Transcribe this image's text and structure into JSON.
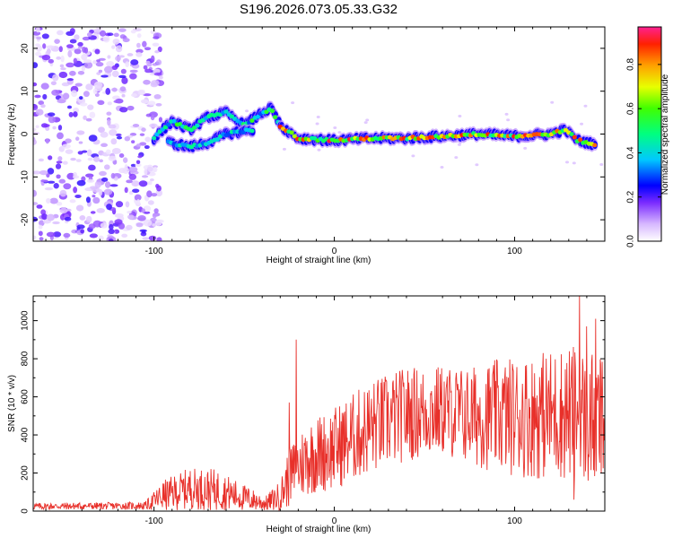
{
  "title": "S196.2026.073.05.33.G32",
  "chart_data": [
    {
      "type": "heatmap",
      "xlabel": "Height of straight line (km)",
      "ylabel": "Frequency (Hz)",
      "xlim": [
        -167,
        150
      ],
      "ylim": [
        -25,
        25
      ],
      "xticks": [
        -100,
        0,
        100
      ],
      "yticks": [
        -20,
        -10,
        0,
        10,
        20
      ],
      "colorbar": {
        "label": "Normalized spectral amplitude",
        "range": [
          0,
          0.97
        ],
        "ticks": [
          "0.0",
          "0.2",
          "0.4",
          "0.6",
          "0.8"
        ],
        "tick_values": [
          0.0,
          0.2,
          0.4,
          0.6,
          0.8
        ]
      },
      "ridge": [
        {
          "x": -100,
          "y": -1
        },
        {
          "x": -90,
          "y": 3
        },
        {
          "x": -80,
          "y": 1
        },
        {
          "x": -70,
          "y": 4
        },
        {
          "x": -60,
          "y": 5
        },
        {
          "x": -50,
          "y": 2
        },
        {
          "x": -40,
          "y": 5
        },
        {
          "x": -35,
          "y": 6
        },
        {
          "x": -30,
          "y": 2
        },
        {
          "x": -20,
          "y": -1
        },
        {
          "x": 0,
          "y": -1.5
        },
        {
          "x": 20,
          "y": -1
        },
        {
          "x": 40,
          "y": -1
        },
        {
          "x": 60,
          "y": -0.5
        },
        {
          "x": 80,
          "y": 0
        },
        {
          "x": 100,
          "y": -0.5
        },
        {
          "x": 120,
          "y": 0
        },
        {
          "x": 128,
          "y": 1
        },
        {
          "x": 135,
          "y": -1.5
        },
        {
          "x": 145,
          "y": -2.5
        }
      ],
      "secondary_ridge": [
        {
          "x": -92,
          "y": -2
        },
        {
          "x": -80,
          "y": -3
        },
        {
          "x": -70,
          "y": -2
        },
        {
          "x": -60,
          "y": 0
        },
        {
          "x": -45,
          "y": 1
        }
      ],
      "noise_region_x": [
        -167,
        -100
      ],
      "noise_region_y": [
        -25,
        25
      ]
    },
    {
      "type": "line",
      "xlabel": "Height of straight line (km)",
      "ylabel": "SNR (10 * v/v)",
      "xlim": [
        -167,
        150
      ],
      "ylim": [
        0,
        1130
      ],
      "xticks": [
        -100,
        0,
        100
      ],
      "yticks": [
        0,
        200,
        400,
        600,
        800,
        1000
      ],
      "color": "#e8302a",
      "series": [
        {
          "name": "SNR",
          "envelope": [
            {
              "x": -167,
              "base": 25,
              "amp": 18
            },
            {
              "x": -105,
              "base": 28,
              "amp": 20
            },
            {
              "x": -95,
              "base": 80,
              "amp": 80
            },
            {
              "x": -80,
              "base": 120,
              "amp": 110
            },
            {
              "x": -65,
              "base": 110,
              "amp": 110
            },
            {
              "x": -50,
              "base": 70,
              "amp": 70
            },
            {
              "x": -38,
              "base": 40,
              "amp": 40
            },
            {
              "x": -30,
              "base": 80,
              "amp": 80
            },
            {
              "x": -25,
              "base": 180,
              "amp": 160
            },
            {
              "x": -15,
              "base": 280,
              "amp": 200
            },
            {
              "x": 0,
              "base": 330,
              "amp": 220
            },
            {
              "x": 20,
              "base": 440,
              "amp": 250
            },
            {
              "x": 40,
              "base": 510,
              "amp": 250
            },
            {
              "x": 60,
              "base": 530,
              "amp": 240
            },
            {
              "x": 75,
              "base": 500,
              "amp": 260
            },
            {
              "x": 90,
              "base": 500,
              "amp": 300
            },
            {
              "x": 110,
              "base": 500,
              "amp": 330
            },
            {
              "x": 130,
              "base": 520,
              "amp": 360
            },
            {
              "x": 150,
              "base": 460,
              "amp": 380
            }
          ],
          "spikes": [
            {
              "x": -21,
              "y": 900
            },
            {
              "x": -25,
              "y": 570
            },
            {
              "x": 136,
              "y": 1130
            },
            {
              "x": 140,
              "y": 970
            },
            {
              "x": 145,
              "y": 1010
            },
            {
              "x": 133,
              "y": 60
            }
          ]
        }
      ]
    }
  ]
}
